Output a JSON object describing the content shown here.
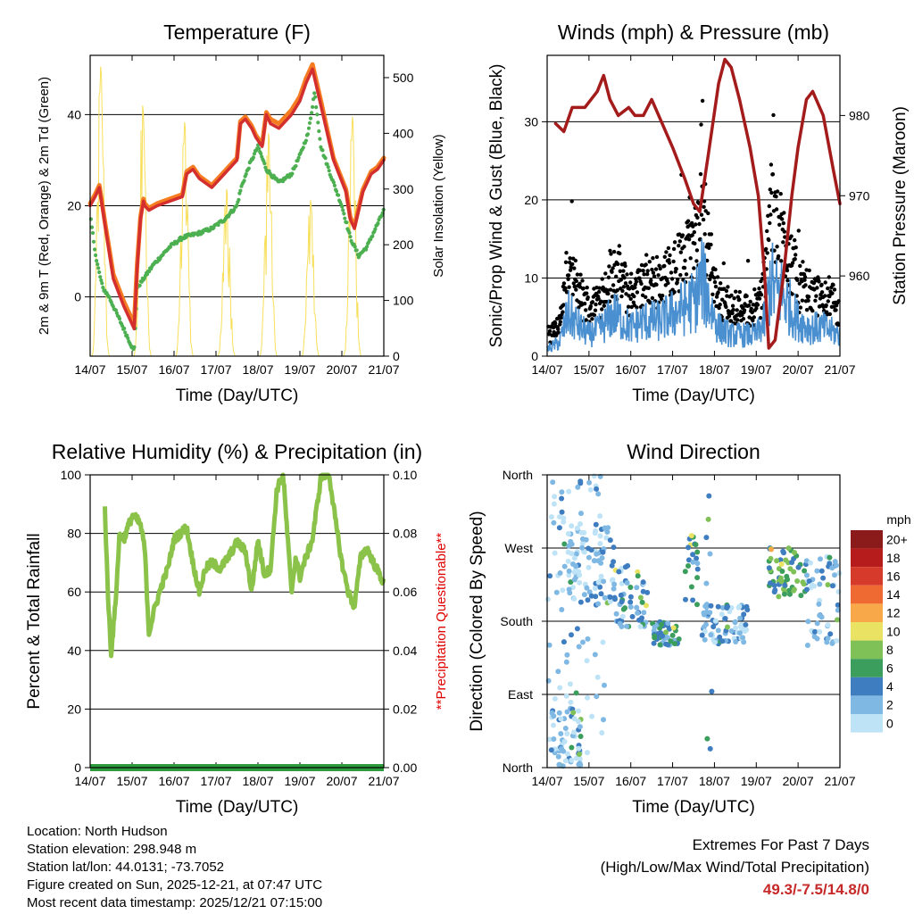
{
  "colors": {
    "temp_2m": "#d32f2f",
    "temp_9m": "#f57c20",
    "dewpoint": "#4caf50",
    "solar": "#f7df5a",
    "wind_black": "#000000",
    "wind_blue": "#4a90d0",
    "pressure": "#a31b1b",
    "rh": "#8bc34a",
    "precip": "#2e9b3e",
    "questionable": "#e00000",
    "extremes": "#c62828"
  },
  "chart_data": [
    {
      "id": "temperature",
      "type": "line",
      "title": "Temperature (F)",
      "xlabel": "Time (Day/UTC)",
      "ylabel_left": "2m & 9m T (Red, Orange) & 2m Td (Green)",
      "ylabel_right": "Solar Insolation (Yellow)",
      "x_ticks": [
        "14/07",
        "15/07",
        "16/07",
        "17/07",
        "18/07",
        "19/07",
        "20/07",
        "21/07"
      ],
      "xlim": [
        0,
        7
      ],
      "ylim": [
        -13,
        53
      ],
      "y_ticks": [
        0,
        20,
        40
      ],
      "y2lim": [
        0,
        540
      ],
      "y2_ticks": [
        0,
        100,
        200,
        300,
        400,
        500
      ],
      "series": [
        {
          "name": "2m T",
          "x": [
            0,
            0.12,
            0.22,
            0.35,
            0.55,
            0.8,
            0.95,
            1.05,
            1.12,
            1.2,
            1.27,
            1.3,
            1.4,
            1.6,
            1.9,
            2.2,
            2.3,
            2.45,
            2.6,
            2.9,
            3.1,
            3.3,
            3.5,
            3.58,
            3.7,
            3.85,
            3.95,
            4.1,
            4.2,
            4.3,
            4.5,
            4.8,
            5.0,
            5.15,
            5.3,
            5.5,
            5.8,
            6.1,
            6.2,
            6.3,
            6.5,
            6.7,
            6.85,
            7.0
          ],
          "values": [
            20,
            22,
            24,
            16,
            4,
            -2,
            -5,
            -7,
            6,
            17,
            21,
            20,
            19,
            20,
            21,
            22,
            27,
            28,
            26,
            24,
            26,
            28,
            30,
            38,
            39,
            37,
            35,
            33,
            40,
            38,
            37,
            40,
            43,
            47,
            50,
            42,
            30,
            23,
            17,
            15,
            23,
            27,
            28,
            30
          ]
        },
        {
          "name": "9m T",
          "x": [
            0,
            0.12,
            0.22,
            0.35,
            0.55,
            0.8,
            0.95,
            1.05,
            1.12,
            1.2,
            1.27,
            1.3,
            1.4,
            1.6,
            1.9,
            2.2,
            2.3,
            2.45,
            2.6,
            2.9,
            3.1,
            3.3,
            3.5,
            3.58,
            3.7,
            3.85,
            3.95,
            4.1,
            4.2,
            4.3,
            4.5,
            4.8,
            5.0,
            5.15,
            5.3,
            5.5,
            5.8,
            6.1,
            6.2,
            6.3,
            6.5,
            6.7,
            6.85,
            7.0
          ],
          "values": [
            20.5,
            22.5,
            24.5,
            16.5,
            5,
            -1,
            -4,
            -6,
            7,
            17.5,
            21.5,
            20.5,
            19.5,
            20.5,
            21.5,
            22.5,
            27.5,
            28.5,
            26.5,
            24.5,
            26.5,
            28.5,
            30.5,
            38.5,
            39.5,
            37.5,
            35.5,
            33.5,
            40.5,
            39,
            38,
            41,
            44,
            48,
            51,
            43,
            30.5,
            23.5,
            17.5,
            15.5,
            23.5,
            27.5,
            28.5,
            30.5
          ]
        },
        {
          "name": "2m Td",
          "x": [
            0,
            0.15,
            0.3,
            0.45,
            0.6,
            0.8,
            0.95,
            1.05,
            1.12,
            1.2,
            1.5,
            1.7,
            1.9,
            2.2,
            2.6,
            2.9,
            3.2,
            3.5,
            3.6,
            3.8,
            4.0,
            4.2,
            4.5,
            4.8,
            5.0,
            5.2,
            5.35,
            5.5,
            5.8,
            6.0,
            6.2,
            6.4,
            6.6,
            6.8,
            7.0
          ],
          "values": [
            18,
            8,
            2,
            0,
            -3,
            -7,
            -10,
            -12,
            2,
            3,
            7,
            9,
            11,
            13,
            14,
            15,
            17,
            20,
            24,
            29,
            33,
            28,
            25,
            27,
            31,
            36,
            45,
            33,
            25,
            20,
            13,
            9,
            11,
            15,
            19
          ]
        }
      ],
      "solar_peaks_day": [
        0.25,
        1.25,
        2.25,
        3.25,
        4.25,
        5.25,
        6.25
      ],
      "solar_peak_values": [
        520,
        450,
        420,
        300,
        400,
        280,
        430
      ]
    },
    {
      "id": "winds",
      "type": "scatter",
      "title": "Winds (mph) & Pressure (mb)",
      "xlabel": "Time (Day/UTC)",
      "ylabel_left": "Sonic/Prop Wind & Gust (Blue, Black)",
      "ylabel_right": "Station Pressure (Maroon)",
      "x_ticks": [
        "14/07",
        "15/07",
        "16/07",
        "17/07",
        "18/07",
        "19/07",
        "20/07",
        "21/07"
      ],
      "xlim": [
        0,
        7
      ],
      "ylim": [
        0,
        38.5
      ],
      "y_ticks": [
        0,
        10,
        20,
        30
      ],
      "y2lim": [
        950,
        987.5
      ],
      "y2_ticks": [
        960,
        970,
        980
      ],
      "pressure": {
        "x": [
          0.2,
          0.4,
          0.6,
          0.9,
          1.2,
          1.35,
          1.5,
          1.7,
          1.95,
          2.1,
          2.3,
          2.5,
          2.75,
          3.0,
          3.3,
          3.5,
          3.65,
          3.85,
          4.1,
          4.25,
          4.4,
          4.6,
          4.85,
          5.05,
          5.2,
          5.3,
          5.45,
          5.65,
          5.85,
          6.0,
          6.2,
          6.35,
          6.6,
          6.85,
          7.0
        ],
        "values": [
          979,
          978,
          981,
          981,
          983,
          985,
          982,
          980,
          981,
          980,
          980,
          982,
          979,
          976,
          972,
          969,
          968,
          975,
          984,
          987,
          986,
          982,
          976,
          970,
          960,
          951,
          952,
          960,
          970,
          976,
          982,
          983,
          980,
          973,
          969
        ]
      },
      "wind_profile": {
        "x": [
          0,
          0.3,
          0.5,
          0.8,
          1.0,
          1.3,
          1.6,
          2.0,
          2.3,
          2.7,
          3.0,
          3.3,
          3.55,
          3.7,
          3.9,
          4.1,
          4.4,
          4.7,
          5.0,
          5.2,
          5.35,
          5.45,
          5.6,
          5.8,
          6.0,
          6.3,
          6.6,
          7.0
        ],
        "values": [
          1,
          2,
          6,
          4,
          3,
          4,
          6,
          4,
          5,
          5,
          6,
          7,
          8,
          11,
          7,
          4,
          3,
          3,
          3,
          5,
          11,
          9,
          9,
          7,
          5,
          4,
          4,
          3
        ]
      }
    },
    {
      "id": "humidity",
      "type": "line",
      "title": "Relative Humidity (%) & Precipitation (in)",
      "xlabel": "Time (Day/UTC)",
      "ylabel_left": "Percent & Total Rainfall",
      "ylabel_right": "**Precipitation Questionable**",
      "x_ticks": [
        "14/07",
        "15/07",
        "16/07",
        "17/07",
        "18/07",
        "19/07",
        "20/07",
        "21/07"
      ],
      "xlim": [
        0,
        7
      ],
      "ylim": [
        0,
        100
      ],
      "y_ticks": [
        0,
        20,
        40,
        60,
        80,
        100
      ],
      "y2lim": [
        0,
        0.1
      ],
      "y2_ticks": [
        "0.00",
        "0.02",
        "0.04",
        "0.06",
        "0.08",
        "0.10"
      ],
      "rh": {
        "x": [
          0.35,
          0.42,
          0.5,
          0.6,
          0.7,
          0.8,
          0.9,
          1.0,
          1.1,
          1.2,
          1.3,
          1.4,
          1.55,
          1.7,
          1.85,
          2.0,
          2.15,
          2.3,
          2.45,
          2.6,
          2.75,
          2.9,
          3.1,
          3.3,
          3.5,
          3.7,
          3.85,
          4.0,
          4.15,
          4.3,
          4.45,
          4.6,
          4.8,
          4.9,
          5.0,
          5.1,
          5.3,
          5.5,
          5.6,
          5.7,
          5.85,
          6.0,
          6.15,
          6.3,
          6.45,
          6.6,
          6.75,
          6.9,
          7.0
        ],
        "values": [
          89,
          60,
          39,
          55,
          80,
          78,
          82,
          86,
          85,
          83,
          75,
          46,
          55,
          62,
          68,
          78,
          80,
          82,
          70,
          60,
          68,
          70,
          68,
          72,
          77,
          74,
          60,
          78,
          66,
          68,
          95,
          100,
          60,
          72,
          65,
          70,
          78,
          99,
          100,
          100,
          84,
          70,
          60,
          55,
          72,
          75,
          70,
          66,
          63
        ]
      },
      "precip_total": 0
    },
    {
      "id": "wind_direction",
      "type": "scatter",
      "title": "Wind Direction",
      "xlabel": "Time (Day/UTC)",
      "ylabel": "Direction (Colored By Speed)",
      "x_ticks": [
        "14/07",
        "15/07",
        "16/07",
        "17/07",
        "18/07",
        "19/07",
        "20/07",
        "21/07"
      ],
      "xlim": [
        0,
        7
      ],
      "ylim": [
        0,
        360
      ],
      "y_ticks": [
        {
          "value": 0,
          "label": "North"
        },
        {
          "value": 90,
          "label": "East"
        },
        {
          "value": 180,
          "label": "South"
        },
        {
          "value": 270,
          "label": "West"
        },
        {
          "value": 360,
          "label": "North"
        }
      ],
      "colorbar": {
        "unit": "mph",
        "levels": [
          "20+",
          "18",
          "16",
          "14",
          "12",
          "10",
          "8",
          "6",
          "4",
          "2",
          "0"
        ],
        "colors": [
          "#8b1a1a",
          "#b71c1c",
          "#d63a2a",
          "#ef6a32",
          "#f8a848",
          "#e9e263",
          "#7fc157",
          "#3c9e5d",
          "#3f7dc1",
          "#7fb8e3",
          "#bfe3f6"
        ]
      }
    }
  ],
  "meta": {
    "location": "Location: North Hudson",
    "elevation": "Station elevation: 298.948 m",
    "latlon": "Station lat/lon: 44.0131; -73.7052",
    "created": "Figure created on Sun, 2025-12-21, at 07:47 UTC",
    "recent": "Most recent data timestamp: 2025/12/21 07:15:00"
  },
  "extremes": {
    "title": "Extremes For Past 7 Days",
    "subtitle": "(High/Low/Max Wind/Total Precipitation)",
    "value": "49.3/-7.5/14.8/0"
  }
}
